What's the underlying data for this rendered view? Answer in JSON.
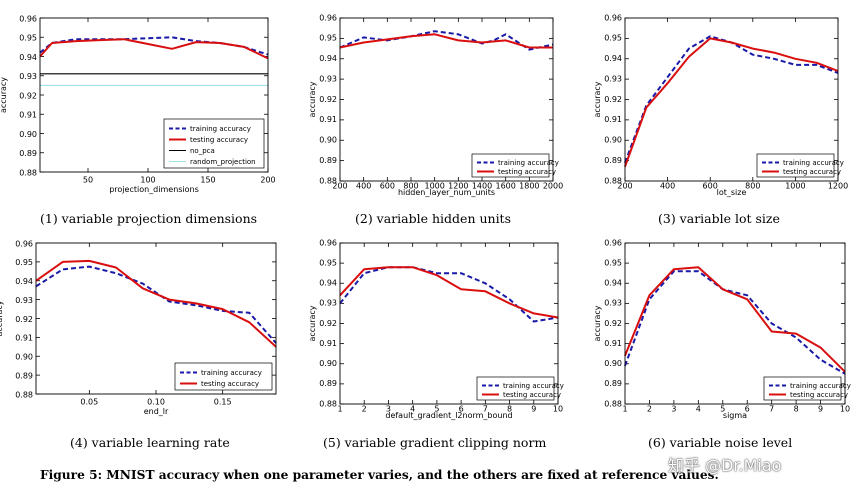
{
  "figure_caption": "Figure 5: MNIST accuracy when one parameter varies, and the others are fixed at reference values.",
  "watermark": "知乎 @Dr.Miao",
  "colors": {
    "training": "#1a1aa8",
    "testing": "#d90f0f",
    "no_pca": "#000000",
    "random_projection": "#9fe3e6"
  },
  "chart_data": [
    {
      "type": "line",
      "caption": "(1) variable projection dimensions",
      "xlabel": "projection_dimensions",
      "ylabel": "accuracy",
      "xlim": [
        10,
        200
      ],
      "ylim": [
        0.88,
        0.96
      ],
      "xticks": [
        50,
        100,
        150,
        200
      ],
      "yticks": [
        0.88,
        0.89,
        0.9,
        0.91,
        0.92,
        0.93,
        0.94,
        0.95,
        0.96
      ],
      "ytick_labels": [
        "0.88",
        "0.89",
        "0.90",
        "0.91",
        "0.92",
        "0.93",
        "0.94",
        "0.95",
        "0.96"
      ],
      "legend_position": "lower-right",
      "series": [
        {
          "name": "training accuracy",
          "style": "dashed",
          "color": "training",
          "x": [
            10,
            20,
            40,
            60,
            80,
            100,
            120,
            140,
            160,
            180,
            200
          ],
          "y": [
            0.942,
            0.947,
            0.949,
            0.949,
            0.949,
            0.9495,
            0.95,
            0.948,
            0.947,
            0.945,
            0.941
          ]
        },
        {
          "name": "testing accuracy",
          "style": "solid",
          "color": "testing",
          "x": [
            10,
            20,
            40,
            60,
            80,
            100,
            120,
            140,
            160,
            180,
            200
          ],
          "y": [
            0.94,
            0.947,
            0.948,
            0.9485,
            0.949,
            0.9465,
            0.944,
            0.9475,
            0.947,
            0.945,
            0.939
          ]
        },
        {
          "name": "no_pca",
          "style": "solid",
          "color": "no_pca",
          "x": [
            10,
            200
          ],
          "y": [
            0.931,
            0.931
          ]
        },
        {
          "name": "random_projection",
          "style": "solid",
          "color": "random_projection",
          "x": [
            10,
            200
          ],
          "y": [
            0.925,
            0.925
          ]
        }
      ]
    },
    {
      "type": "line",
      "caption": "(2) variable hidden units",
      "xlabel": "hidden_layer_num_units",
      "ylabel": "accuracy",
      "xlim": [
        200,
        2000
      ],
      "ylim": [
        0.88,
        0.96
      ],
      "xticks": [
        200,
        400,
        600,
        800,
        1000,
        1200,
        1400,
        1600,
        1800,
        2000
      ],
      "yticks": [
        0.88,
        0.89,
        0.9,
        0.91,
        0.92,
        0.93,
        0.94,
        0.95,
        0.96
      ],
      "ytick_labels": [
        "0.88",
        "0.89",
        "0.90",
        "0.91",
        "0.92",
        "0.93",
        "0.94",
        "0.95",
        "0.96"
      ],
      "legend_position": "lower-right",
      "series": [
        {
          "name": "training accuracy",
          "style": "dashed",
          "color": "training",
          "x": [
            200,
            300,
            400,
            600,
            800,
            1000,
            1200,
            1400,
            1500,
            1600,
            1800,
            2000
          ],
          "y": [
            0.9455,
            0.948,
            0.9505,
            0.949,
            0.951,
            0.9535,
            0.952,
            0.9475,
            0.949,
            0.952,
            0.9445,
            0.947
          ]
        },
        {
          "name": "testing accuracy",
          "style": "solid",
          "color": "testing",
          "x": [
            200,
            400,
            600,
            800,
            1000,
            1200,
            1400,
            1600,
            1800,
            2000
          ],
          "y": [
            0.9455,
            0.948,
            0.9495,
            0.951,
            0.952,
            0.949,
            0.948,
            0.949,
            0.9455,
            0.9455
          ]
        }
      ]
    },
    {
      "type": "line",
      "caption": "(3) variable lot size",
      "xlabel": "lot_size",
      "ylabel": "accuracy",
      "xlim": [
        200,
        1200
      ],
      "ylim": [
        0.88,
        0.96
      ],
      "xticks": [
        200,
        400,
        600,
        800,
        1000,
        1200
      ],
      "yticks": [
        0.88,
        0.89,
        0.9,
        0.91,
        0.92,
        0.93,
        0.94,
        0.95,
        0.96
      ],
      "ytick_labels": [
        "0.88",
        "0.89",
        "0.90",
        "0.91",
        "0.92",
        "0.93",
        "0.94",
        "0.95",
        "0.96"
      ],
      "legend_position": "lower-right",
      "series": [
        {
          "name": "training accuracy",
          "style": "dashed",
          "color": "training",
          "x": [
            200,
            300,
            400,
            500,
            600,
            700,
            800,
            900,
            1000,
            1100,
            1200
          ],
          "y": [
            0.889,
            0.917,
            0.931,
            0.945,
            0.951,
            0.948,
            0.942,
            0.94,
            0.937,
            0.937,
            0.933
          ]
        },
        {
          "name": "testing accuracy",
          "style": "solid",
          "color": "testing",
          "x": [
            200,
            300,
            400,
            500,
            600,
            700,
            800,
            900,
            1000,
            1100,
            1200
          ],
          "y": [
            0.887,
            0.916,
            0.928,
            0.941,
            0.95,
            0.948,
            0.945,
            0.943,
            0.94,
            0.938,
            0.934
          ]
        }
      ]
    },
    {
      "type": "line",
      "caption": "(4) variable learning rate",
      "xlabel": "end_lr",
      "ylabel": "accuracy",
      "xlim": [
        0.01,
        0.19
      ],
      "ylim": [
        0.88,
        0.96
      ],
      "xticks": [
        0.05,
        0.1,
        0.15
      ],
      "xtick_labels": [
        "0.05",
        "0.10",
        "0.15"
      ],
      "yticks": [
        0.88,
        0.89,
        0.9,
        0.91,
        0.92,
        0.93,
        0.94,
        0.95,
        0.96
      ],
      "ytick_labels": [
        "0.88",
        "0.89",
        "0.90",
        "0.91",
        "0.92",
        "0.93",
        "0.94",
        "0.95",
        "0.96"
      ],
      "legend_position": "lower-right",
      "series": [
        {
          "name": "training accuracy",
          "style": "dashed",
          "color": "training",
          "x": [
            0.01,
            0.03,
            0.05,
            0.07,
            0.09,
            0.11,
            0.13,
            0.15,
            0.17,
            0.19
          ],
          "y": [
            0.937,
            0.946,
            0.9475,
            0.944,
            0.9385,
            0.929,
            0.927,
            0.924,
            0.923,
            0.907
          ]
        },
        {
          "name": "testing accuracy",
          "style": "solid",
          "color": "testing",
          "x": [
            0.01,
            0.03,
            0.05,
            0.07,
            0.09,
            0.11,
            0.13,
            0.15,
            0.17,
            0.19
          ],
          "y": [
            0.94,
            0.95,
            0.9505,
            0.947,
            0.936,
            0.93,
            0.928,
            0.925,
            0.918,
            0.905
          ]
        }
      ]
    },
    {
      "type": "line",
      "caption": "(5) variable gradient clipping norm",
      "xlabel": "default_gradient_l2norm_bound",
      "ylabel": "accuracy",
      "xlim": [
        1,
        10
      ],
      "ylim": [
        0.88,
        0.96
      ],
      "xticks": [
        1,
        2,
        3,
        4,
        5,
        6,
        7,
        8,
        9,
        10
      ],
      "yticks": [
        0.88,
        0.89,
        0.9,
        0.91,
        0.92,
        0.93,
        0.94,
        0.95,
        0.96
      ],
      "ytick_labels": [
        "0.88",
        "0.89",
        "0.90",
        "0.91",
        "0.92",
        "0.93",
        "0.94",
        "0.95",
        "0.96"
      ],
      "legend_position": "lower-right",
      "series": [
        {
          "name": "training accuracy",
          "style": "dashed",
          "color": "training",
          "x": [
            1,
            2,
            3,
            4,
            5,
            6,
            7,
            8,
            9,
            10
          ],
          "y": [
            0.93,
            0.945,
            0.948,
            0.948,
            0.945,
            0.945,
            0.94,
            0.932,
            0.921,
            0.923
          ]
        },
        {
          "name": "testing accuracy",
          "style": "solid",
          "color": "testing",
          "x": [
            1,
            2,
            3,
            4,
            5,
            6,
            7,
            8,
            9,
            10
          ],
          "y": [
            0.934,
            0.947,
            0.948,
            0.948,
            0.944,
            0.937,
            0.936,
            0.93,
            0.925,
            0.923
          ]
        }
      ]
    },
    {
      "type": "line",
      "caption": "(6) variable noise level",
      "xlabel": "sigma",
      "ylabel": "accuracy",
      "xlim": [
        1,
        10
      ],
      "ylim": [
        0.88,
        0.96
      ],
      "xticks": [
        1,
        2,
        3,
        4,
        5,
        6,
        7,
        8,
        9,
        10
      ],
      "yticks": [
        0.88,
        0.89,
        0.9,
        0.91,
        0.92,
        0.93,
        0.94,
        0.95,
        0.96
      ],
      "ytick_labels": [
        "0.88",
        "0.89",
        "0.90",
        "0.91",
        "0.92",
        "0.93",
        "0.94",
        "0.95",
        "0.96"
      ],
      "legend_position": "lower-right",
      "series": [
        {
          "name": "training accuracy",
          "style": "dashed",
          "color": "training",
          "x": [
            1,
            2,
            3,
            4,
            5,
            6,
            7,
            8,
            9,
            10
          ],
          "y": [
            0.899,
            0.932,
            0.946,
            0.946,
            0.937,
            0.934,
            0.92,
            0.913,
            0.902,
            0.895
          ]
        },
        {
          "name": "testing accuracy",
          "style": "solid",
          "color": "testing",
          "x": [
            1,
            2,
            3,
            4,
            5,
            6,
            7,
            8,
            9,
            10
          ],
          "y": [
            0.904,
            0.934,
            0.947,
            0.948,
            0.937,
            0.932,
            0.916,
            0.915,
            0.908,
            0.896
          ]
        }
      ]
    }
  ]
}
